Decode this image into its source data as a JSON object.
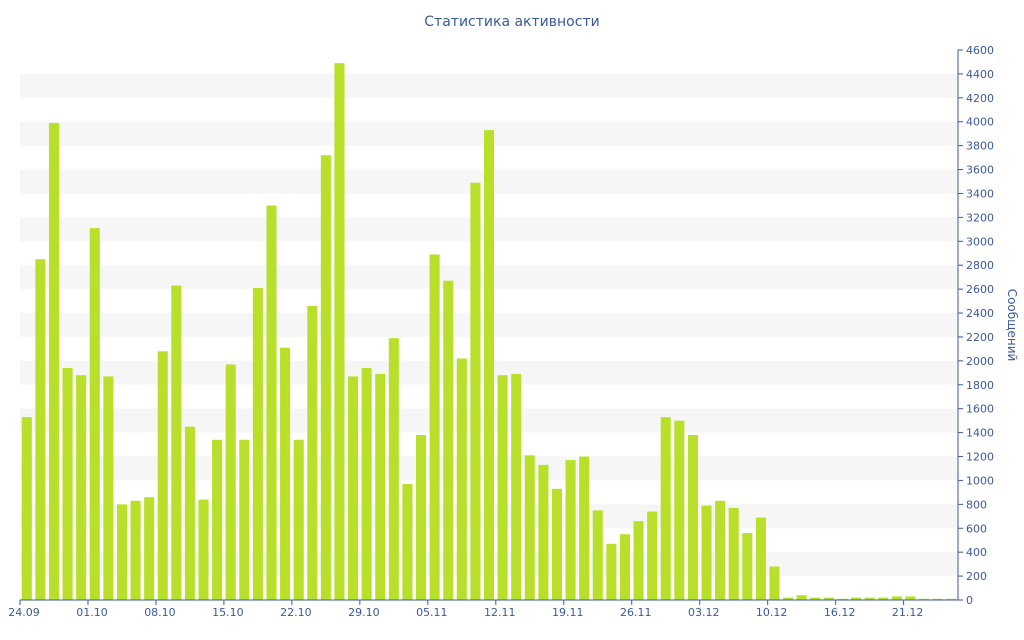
{
  "chart_data": {
    "type": "bar",
    "title": "Статистика активности",
    "xlabel": "",
    "ylabel": "Сообщений",
    "ylim": [
      0,
      4600
    ],
    "y_ticks": [
      0,
      200,
      400,
      600,
      800,
      1000,
      1200,
      1400,
      1600,
      1800,
      2000,
      2200,
      2400,
      2600,
      2800,
      3000,
      3200,
      3400,
      3600,
      3800,
      4000,
      4200,
      4400,
      4600
    ],
    "y_axis_position": "right",
    "grid": "alternating horizontal bands",
    "x_tick_labels": [
      "24.09",
      "01.10",
      "08.10",
      "15.10",
      "22.10",
      "29.10",
      "05.11",
      "12.11",
      "19.11",
      "26.11",
      "03.12",
      "10.12",
      "16.12",
      "21.12"
    ],
    "values": [
      1530,
      2850,
      3990,
      1940,
      1880,
      3110,
      1870,
      800,
      830,
      860,
      2080,
      2630,
      1450,
      840,
      1340,
      1970,
      1340,
      2610,
      3300,
      2110,
      1340,
      2460,
      3720,
      4490,
      1870,
      1940,
      1890,
      2190,
      970,
      1380,
      2890,
      2670,
      2020,
      3490,
      3930,
      1880,
      1890,
      1210,
      1130,
      930,
      1170,
      1200,
      750,
      470,
      550,
      660,
      740,
      1530,
      1500,
      1380,
      790,
      830,
      770,
      560,
      690,
      280,
      20,
      40,
      20,
      20,
      10,
      20,
      20,
      20,
      30,
      30,
      10,
      10,
      10
    ],
    "bar_color": "#b8e02a"
  }
}
